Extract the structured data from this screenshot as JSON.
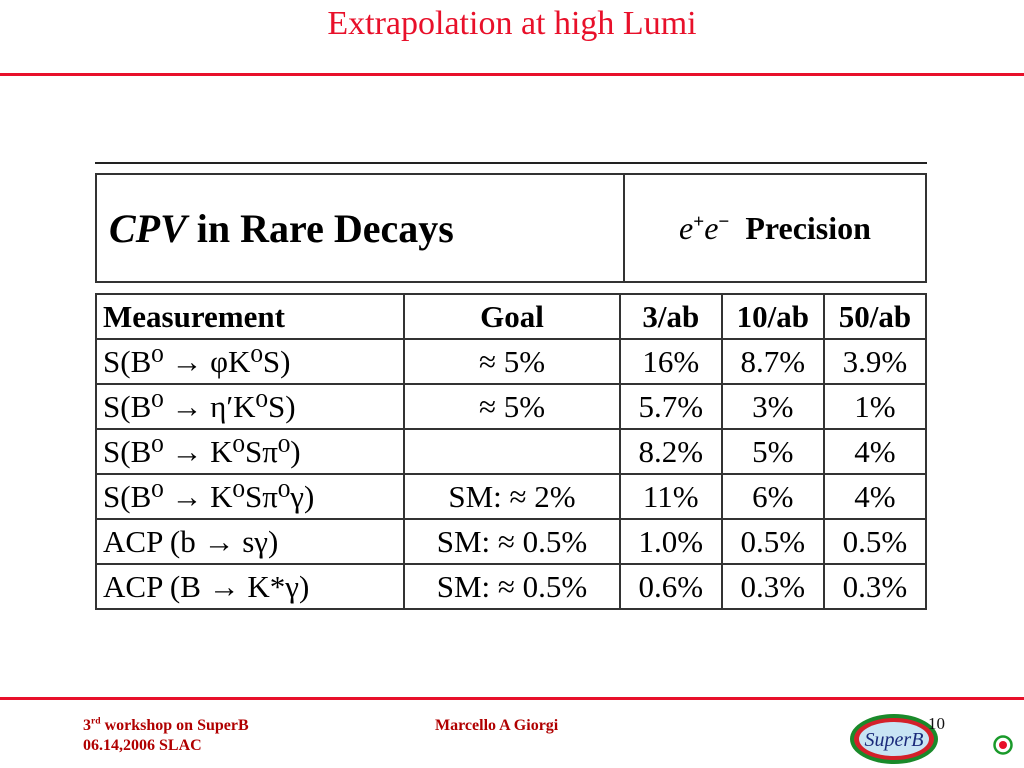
{
  "slide": {
    "title": "Extrapolation at high Lumi"
  },
  "table": {
    "header_left_italic": "CPV",
    "header_left_rest": " in Rare Decays",
    "header_right_e1": "e",
    "header_right_sup1": "+",
    "header_right_e2": "e",
    "header_right_sup2": "−",
    "header_right_label": "Precision",
    "columns": [
      "Measurement",
      "Goal",
      "3/ab",
      "10/ab",
      "50/ab"
    ],
    "rows": [
      {
        "measurement": "S(B⁰ → φK⁰S)",
        "goal": "≈ 5%",
        "v3": "16%",
        "v10": "8.7%",
        "v50": "3.9%"
      },
      {
        "measurement": "S(B⁰ → η′K⁰S)",
        "goal": "≈ 5%",
        "v3": "5.7%",
        "v10": "3%",
        "v50": "1%"
      },
      {
        "measurement": "S(B⁰ → K⁰Sπ⁰)",
        "goal": "",
        "v3": "8.2%",
        "v10": "5%",
        "v50": "4%"
      },
      {
        "measurement": "S(B⁰ → K⁰Sπ⁰γ)",
        "goal": "SM: ≈ 2%",
        "v3": "11%",
        "v10": "6%",
        "v50": "4%"
      },
      {
        "measurement": "ACP (b → sγ)",
        "goal": "SM: ≈ 0.5%",
        "v3": "1.0%",
        "v10": "0.5%",
        "v50": "0.5%"
      },
      {
        "measurement": "ACP (B → K*γ)",
        "goal": "SM: ≈ 0.5%",
        "v3": "0.6%",
        "v10": "0.3%",
        "v50": "0.3%"
      }
    ]
  },
  "footer": {
    "workshop_num": "3",
    "workshop_sup": "rd",
    "workshop_rest": " workshop on SuperB",
    "date_place": "06.14,2006 SLAC",
    "author": "Marcello A Giorgi",
    "page_number": "10",
    "logo_text": "SuperB"
  },
  "colors": {
    "accent": "#e8102a",
    "footer_text": "#b00000"
  }
}
